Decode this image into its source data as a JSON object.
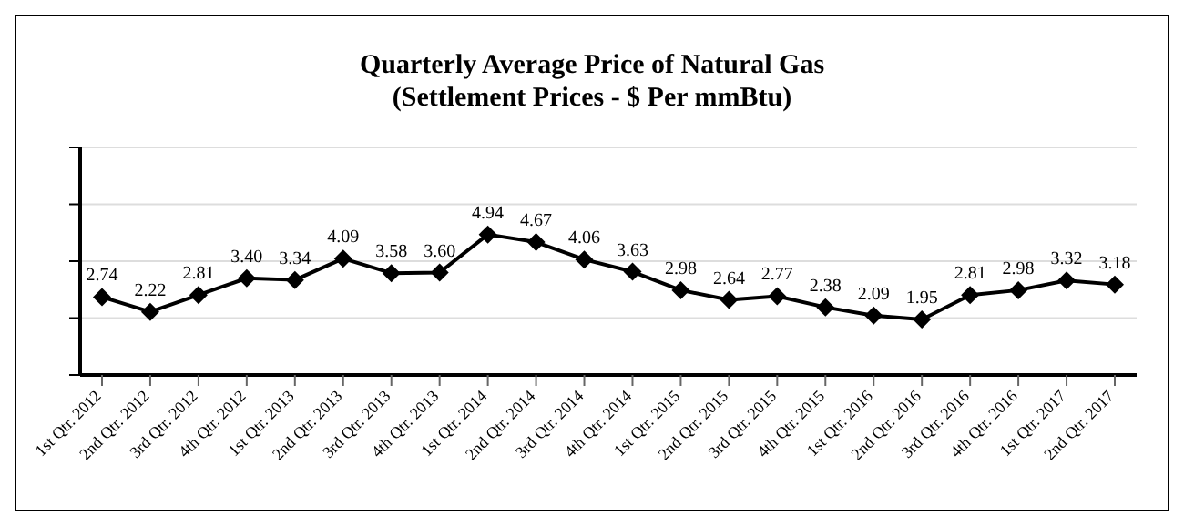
{
  "chart_data": {
    "type": "line",
    "title": "Quarterly Average Price of Natural Gas",
    "subtitle": "(Settlement Prices - $ Per mmBtu)",
    "categories": [
      "1st Qtr. 2012",
      "2nd Qtr. 2012",
      "3rd Qtr. 2012",
      "4th Qtr. 2012",
      "1st Qtr. 2013",
      "2nd Qtr. 2013",
      "3rd Qtr. 2013",
      "4th Qtr. 2013",
      "1st Qtr. 2014",
      "2nd Qtr. 2014",
      "3rd Qtr. 2014",
      "4th Qtr. 2014",
      "1st Qtr. 2015",
      "2nd Qtr. 2015",
      "3rd Qtr. 2015",
      "4th Qtr. 2015",
      "1st Qtr. 2016",
      "2nd Qtr. 2016",
      "3rd Qtr. 2016",
      "4th Qtr. 2016",
      "1st Qtr. 2017",
      "2nd Qtr. 2017"
    ],
    "series": [
      {
        "color": "#000000",
        "values": [
          2.74,
          2.22,
          2.81,
          3.4,
          3.34,
          4.09,
          3.58,
          3.6,
          4.94,
          4.67,
          4.06,
          3.63,
          2.98,
          2.64,
          2.77,
          2.38,
          2.09,
          1.95,
          2.81,
          2.98,
          3.32,
          3.18
        ],
        "value_labels": [
          "2.74",
          "2.22",
          "2.81",
          "3.40",
          "3.34",
          "4.09",
          "3.58",
          "3.60",
          "4.94",
          "4.67",
          "4.06",
          "3.63",
          "2.98",
          "2.64",
          "2.77",
          "2.38",
          "2.09",
          "1.95",
          "2.81",
          "2.98",
          "3.32",
          "3.18"
        ]
      }
    ],
    "ylim": [
      0,
      8
    ],
    "yticks": [
      {
        "value": 0,
        "label": null
      },
      {
        "value": 2,
        "label": null
      },
      {
        "value": 4,
        "label": null
      },
      {
        "value": 6,
        "label": null
      },
      {
        "value": 8,
        "label": null
      }
    ],
    "grid": "y",
    "marker": "diamond",
    "line_style": "solid",
    "tick_labels": "x",
    "legend": false
  }
}
